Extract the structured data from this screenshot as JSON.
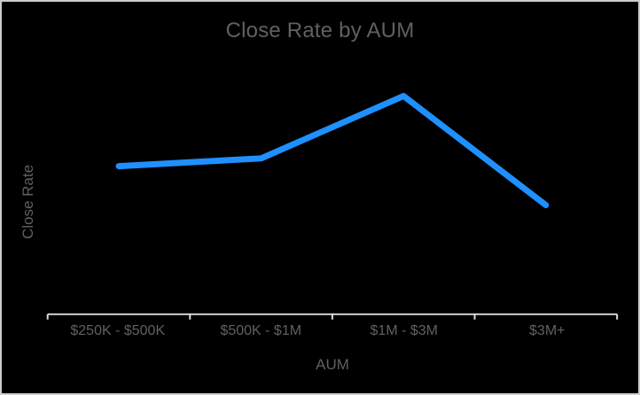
{
  "window": {
    "background": "#000000",
    "border_color": "#cdcdcd"
  },
  "chart_data": {
    "type": "line",
    "title": "Close Rate by AUM",
    "xlabel": "AUM",
    "ylabel": "Close Rate",
    "categories": [
      "$250K - $500K",
      "$500K - $1M",
      "$1M - $3M",
      "$3M+"
    ],
    "series": [
      {
        "name": "Close Rate",
        "values": [
          0.57,
          0.6,
          0.84,
          0.42
        ]
      }
    ],
    "value_scale": "relative (y-axis has no tick labels; values estimated as fraction of plot height, 0-1)",
    "grid": false,
    "legend": false,
    "y_ticks_shown": false,
    "x_tick_style": "ticks at category band boundaries, below axis line",
    "colors": {
      "line": "#1e90ff",
      "axis": "#dcdcdc",
      "text": "#606060",
      "background": "#000000",
      "frame_border": "#cdcdcd"
    }
  }
}
